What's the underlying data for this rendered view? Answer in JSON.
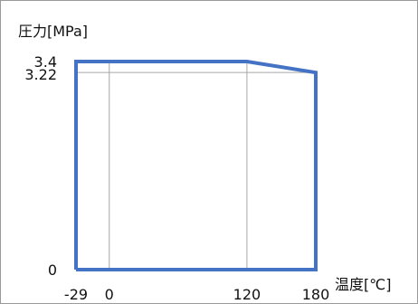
{
  "chart_data": {
    "type": "line",
    "ylabel": "圧力[MPa]",
    "xlabel": "温度[℃]",
    "xlim": [
      -29,
      180
    ],
    "ylim": [
      0,
      3.4
    ],
    "x_ticks": [
      -29,
      0,
      120,
      180
    ],
    "y_ticks": [
      0,
      3.22,
      3.4
    ],
    "x_tick_labels": [
      "-29",
      "0",
      "120",
      "180"
    ],
    "y_tick_labels": [
      "0",
      "3.22",
      "3.4"
    ],
    "grid_x": [
      0,
      120
    ],
    "grid_y": [
      3.22
    ],
    "series": [
      {
        "color": "#4472c4",
        "points": [
          {
            "x": -29,
            "y": 0
          },
          {
            "x": -29,
            "y": 3.4
          },
          {
            "x": 120,
            "y": 3.4
          },
          {
            "x": 180,
            "y": 3.22
          },
          {
            "x": 180,
            "y": 0
          },
          {
            "x": -29,
            "y": 0
          }
        ]
      }
    ],
    "grid": true
  },
  "colors": {
    "series": "#4472c4",
    "grid": "#a6a6a6",
    "frame": "#9a9a9a"
  }
}
